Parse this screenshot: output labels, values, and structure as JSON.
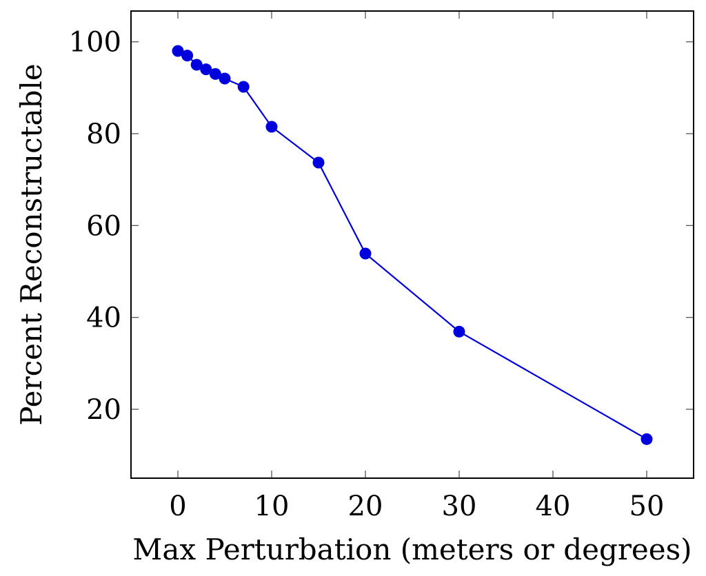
{
  "chart_data": {
    "type": "line",
    "title": "",
    "xlabel": "Max Perturbation (meters or degrees)",
    "ylabel": "Percent Reconstructable",
    "xlim": [
      -5,
      55
    ],
    "ylim": [
      5,
      106.7
    ],
    "xticks": [
      0,
      10,
      20,
      30,
      40,
      50
    ],
    "yticks": [
      20,
      40,
      60,
      80,
      100
    ],
    "grid": false,
    "legend": "none",
    "series": [
      {
        "color": "#0000dd",
        "marker": "circle",
        "x": [
          0,
          1,
          2,
          3,
          4,
          5,
          7,
          10,
          15,
          20,
          30,
          50
        ],
        "y": [
          98.0,
          97.0,
          95.0,
          94.0,
          93.0,
          92.0,
          90.2,
          81.5,
          73.7,
          53.9,
          36.9,
          13.5
        ]
      }
    ]
  }
}
